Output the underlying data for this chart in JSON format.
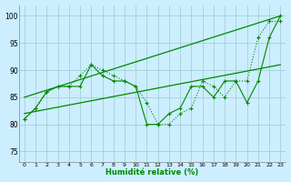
{
  "xlabel": "Humidité relative (%)",
  "bg_color": "#cceeff",
  "grid_color": "#99cccc",
  "line_color": "#008800",
  "xlim": [
    -0.5,
    23.5
  ],
  "ylim": [
    73,
    102
  ],
  "yticks": [
    75,
    80,
    85,
    90,
    95,
    100
  ],
  "xticks": [
    0,
    1,
    2,
    3,
    4,
    5,
    6,
    7,
    8,
    9,
    10,
    11,
    12,
    13,
    14,
    15,
    16,
    17,
    18,
    19,
    20,
    21,
    22,
    23
  ],
  "line1_x": [
    0,
    1,
    2,
    3,
    4,
    5,
    6,
    7,
    8,
    9,
    10,
    11,
    12,
    13,
    14,
    15,
    16,
    17,
    18,
    19,
    20,
    21,
    22,
    23
  ],
  "line1_y": [
    81,
    83,
    86,
    87,
    87,
    87,
    91,
    89,
    88,
    88,
    87,
    80,
    80,
    82,
    83,
    87,
    87,
    85,
    88,
    88,
    84,
    88,
    96,
    100
  ],
  "line2_x": [
    0,
    1,
    2,
    3,
    4,
    5,
    6,
    7,
    8,
    9,
    10,
    11,
    12,
    13,
    14,
    15,
    16,
    17,
    18,
    19,
    20,
    21,
    22,
    23
  ],
  "line2_y": [
    81,
    83,
    86,
    87,
    87,
    89,
    91,
    90,
    89,
    88,
    87,
    84,
    80,
    80,
    82,
    83,
    88,
    87,
    85,
    88,
    88,
    96,
    99,
    99
  ],
  "trend1_x": [
    0,
    23
  ],
  "trend1_y": [
    82,
    91
  ],
  "trend2_x": [
    0,
    23
  ],
  "trend2_y": [
    85,
    100
  ]
}
